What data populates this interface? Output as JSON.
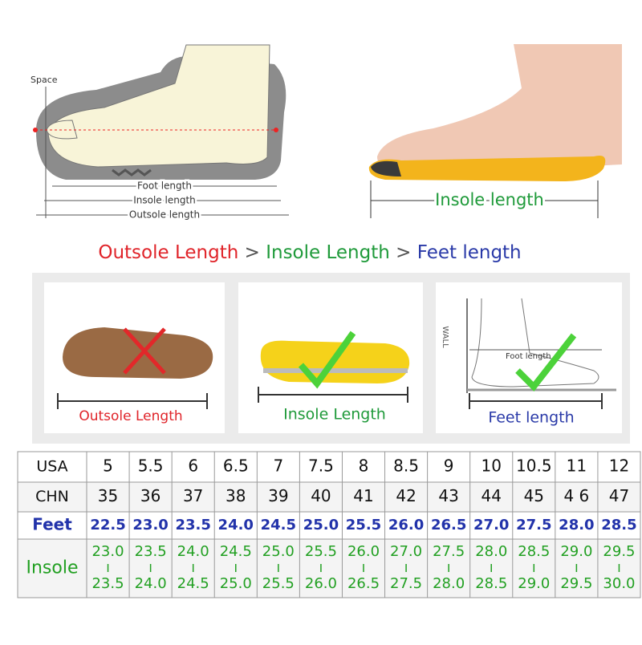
{
  "diagram": {
    "space": "Space",
    "foot_length": "Foot length",
    "insole_length": "Insole length",
    "outsole_length": "Outsole length"
  },
  "photo": {
    "insole_length": "Insole length"
  },
  "comparison": {
    "items": [
      "Outsole Length",
      "Insole Length",
      "Feet length"
    ],
    "separators": [
      ">",
      ">"
    ]
  },
  "panels": [
    {
      "label": "Outsole Length"
    },
    {
      "label": "Insole Length"
    },
    {
      "label": "Feet length",
      "wall": "WALL",
      "foot_length": "Foot length"
    }
  ],
  "table": {
    "rows": [
      {
        "header": "USA",
        "cells": [
          "5",
          "5.5",
          "6",
          "6.5",
          "7",
          "7.5",
          "8",
          "8.5",
          "9",
          "10",
          "10.5",
          "11",
          "12"
        ]
      },
      {
        "header": "CHN",
        "cells": [
          "35",
          "36",
          "37",
          "38",
          "39",
          "40",
          "41",
          "42",
          "43",
          "44",
          "45",
          "4 6",
          "47"
        ]
      },
      {
        "header": "Feet",
        "cells": [
          "22.5",
          "23.0",
          "23.5",
          "24.0",
          "24.5",
          "25.0",
          "25.5",
          "26.0",
          "26.5",
          "27.0",
          "27.5",
          "28.0",
          "28.5"
        ]
      },
      {
        "header": "Insole",
        "cells": [
          [
            "23.0",
            "23.5"
          ],
          [
            "23.5",
            "24.0"
          ],
          [
            "24.0",
            "24.5"
          ],
          [
            "24.5",
            "25.0"
          ],
          [
            "25.0",
            "25.5"
          ],
          [
            "25.5",
            "26.0"
          ],
          [
            "26.0",
            "26.5"
          ],
          [
            "27.0",
            "27.5"
          ],
          [
            "27.5",
            "28.0"
          ],
          [
            "28.0",
            "28.5"
          ],
          [
            "28.5",
            "29.0"
          ],
          [
            "29.0",
            "29.5"
          ],
          [
            "29.5",
            "30.0"
          ]
        ]
      }
    ]
  }
}
